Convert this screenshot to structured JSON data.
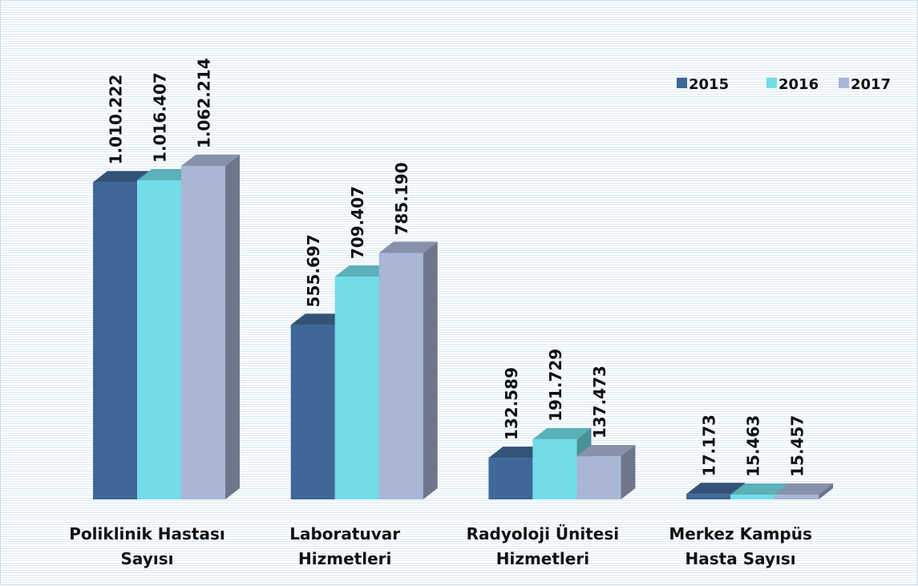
{
  "chart_data": {
    "type": "bar3d",
    "categories": [
      "Poliklinik Hastası Sayısı",
      "Laboratuvar Hizmetleri",
      "Radyoloji Ünitesi Hizmetleri",
      "Merkez Kampüs Hasta Sayısı"
    ],
    "series": [
      {
        "name": "2015",
        "color": "#3f6797",
        "values": [
          1010222,
          555697,
          132589,
          17173
        ],
        "value_labels": [
          "1.010.222",
          "555.697",
          "132.589",
          "17.173"
        ]
      },
      {
        "name": "2016",
        "color": "#72dde8",
        "values": [
          1016407,
          709407,
          191729,
          15463
        ],
        "value_labels": [
          "1.016.407",
          "709.407",
          "191.729",
          "15.463"
        ]
      },
      {
        "name": "2017",
        "color": "#a9b6d6",
        "values": [
          1062214,
          785190,
          137473,
          15457
        ],
        "value_labels": [
          "1.062.214",
          "785.190",
          "137.473",
          "15.457"
        ]
      }
    ],
    "legend": "top-right"
  }
}
